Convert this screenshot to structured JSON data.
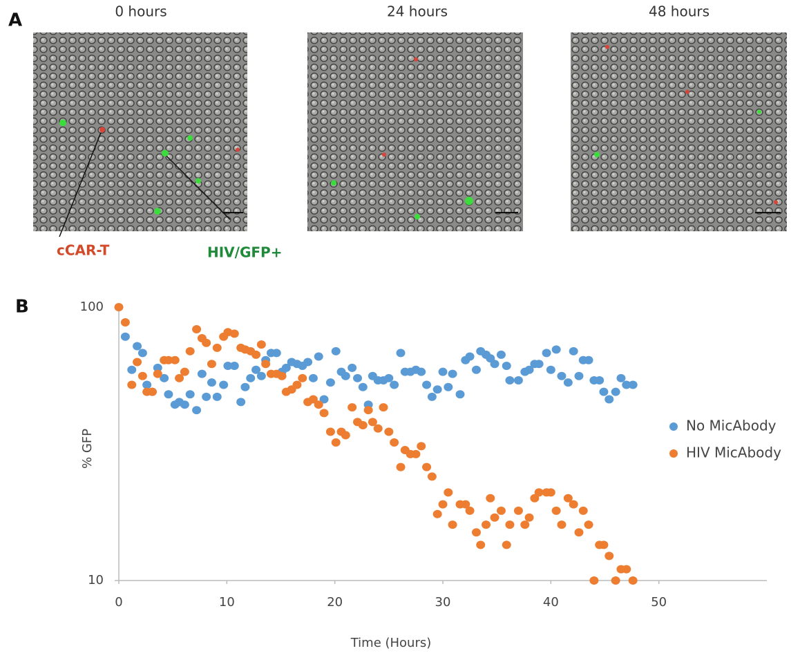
{
  "panel_a": {
    "label": "A",
    "times": [
      "0 hours",
      "24 hours",
      "48 hours"
    ],
    "annotations": [
      "cCAR-T",
      "HIV/GFP+"
    ]
  },
  "panel_b": {
    "label": "B"
  },
  "chart_data": {
    "type": "scatter",
    "x_label": "Time (Hours)",
    "y_label": "% GFP",
    "log_y": true,
    "legend_position": "right",
    "xlim": [
      0,
      60
    ],
    "xticks": [
      0,
      10,
      20,
      30,
      40,
      50
    ],
    "ylim": [
      10,
      100
    ],
    "yticks": [
      10,
      100
    ],
    "series": [
      {
        "name": "No MicAbody",
        "color": "#5b9bd5",
        "x": [
          0.6,
          1.2,
          1.7,
          2.2,
          2.6,
          3.1,
          3.6,
          4.2,
          4.6,
          5.2,
          5.6,
          6.1,
          6.6,
          7.2,
          7.7,
          8.1,
          8.6,
          9.1,
          9.7,
          10.1,
          10.7,
          11.3,
          11.7,
          12.2,
          12.7,
          13.2,
          13.6,
          14.1,
          14.6,
          15.1,
          15.5,
          16.0,
          16.5,
          17.0,
          17.5,
          18.0,
          18.5,
          19.0,
          19.6,
          20.1,
          20.6,
          21.0,
          21.6,
          22.1,
          22.6,
          23.1,
          23.5,
          24.0,
          24.5,
          25.0,
          25.5,
          26.1,
          26.5,
          27.0,
          27.5,
          28.0,
          28.5,
          29.0,
          29.5,
          30.0,
          30.5,
          30.9,
          31.6,
          32.1,
          32.5,
          33.1,
          33.5,
          34.0,
          34.4,
          34.8,
          35.4,
          35.9,
          36.2,
          37.0,
          37.6,
          38.0,
          38.5,
          38.9,
          39.6,
          40.0,
          40.5,
          41.0,
          41.6,
          42.1,
          42.6,
          43.0,
          43.5,
          44.0,
          44.5,
          44.9,
          45.4,
          46.0,
          46.5,
          47.0,
          47.6
        ],
        "values": [
          78,
          59,
          72,
          68,
          52,
          49,
          60,
          55,
          48,
          44,
          45,
          44,
          48,
          42,
          57,
          47,
          53,
          47,
          52,
          61,
          61,
          45,
          51,
          55,
          59,
          56,
          64,
          68,
          68,
          58,
          60,
          63,
          62,
          61,
          63,
          55,
          66,
          46,
          53,
          69,
          58,
          56,
          60,
          55,
          51,
          44,
          56,
          54,
          54,
          55,
          52,
          68,
          58,
          58,
          59,
          58,
          52,
          47,
          50,
          58,
          51,
          57,
          48,
          64,
          66,
          59,
          69,
          67,
          65,
          62,
          67,
          61,
          54,
          54,
          58,
          59,
          62,
          62,
          68,
          59,
          70,
          56,
          53,
          69,
          56,
          64,
          64,
          54,
          54,
          49,
          46,
          49,
          55,
          52,
          52
        ]
      },
      {
        "name": "HIV MicAbody",
        "color": "#ed7d31",
        "x": [
          0,
          0.6,
          1.2,
          1.7,
          2.2,
          2.6,
          3.1,
          3.6,
          4.2,
          4.6,
          5.2,
          5.6,
          6.1,
          6.6,
          7.2,
          7.7,
          8.1,
          8.6,
          9.1,
          9.7,
          10.1,
          10.7,
          11.3,
          11.7,
          12.2,
          12.7,
          13.2,
          13.6,
          14.1,
          14.6,
          15.1,
          15.5,
          16.0,
          16.5,
          17.0,
          17.5,
          18.0,
          18.5,
          19.0,
          19.6,
          20.1,
          20.6,
          21.0,
          21.6,
          22.1,
          22.6,
          23.1,
          23.5,
          24.0,
          24.5,
          25.0,
          25.5,
          26.1,
          26.5,
          27.0,
          27.5,
          28.0,
          28.5,
          29.0,
          29.5,
          30.0,
          30.5,
          30.9,
          31.6,
          32.1,
          32.5,
          33.1,
          33.5,
          34.0,
          34.4,
          34.8,
          35.4,
          35.9,
          36.2,
          37.0,
          37.6,
          38.0,
          38.5,
          38.9,
          39.6,
          40.0,
          40.5,
          41.0,
          41.6,
          42.1,
          42.6,
          43.0,
          43.5,
          44.0,
          44.5,
          44.9,
          45.4,
          46.0,
          46.5,
          47.0,
          47.6
        ],
        "values": [
          100,
          88,
          52,
          63,
          56,
          49,
          49,
          57,
          64,
          64,
          64,
          55,
          58,
          69,
          83,
          77,
          74,
          62,
          71,
          78,
          81,
          80,
          71,
          70,
          69,
          67,
          73,
          62,
          57,
          57,
          56,
          49,
          50,
          52,
          55,
          45,
          46,
          44,
          41,
          35,
          32,
          35,
          34,
          43,
          38,
          37,
          42,
          38,
          36,
          43,
          35,
          32,
          26,
          30,
          29,
          29,
          31,
          26,
          24,
          17.5,
          19,
          21,
          16,
          19,
          19,
          18,
          15,
          13.5,
          16,
          20,
          17,
          18,
          13.5,
          16,
          18,
          16,
          17,
          20,
          21,
          21,
          21,
          18,
          16,
          20,
          19,
          15,
          18,
          16,
          10,
          13.5,
          13.5,
          12.3,
          10,
          11,
          11,
          10
        ]
      }
    ]
  }
}
